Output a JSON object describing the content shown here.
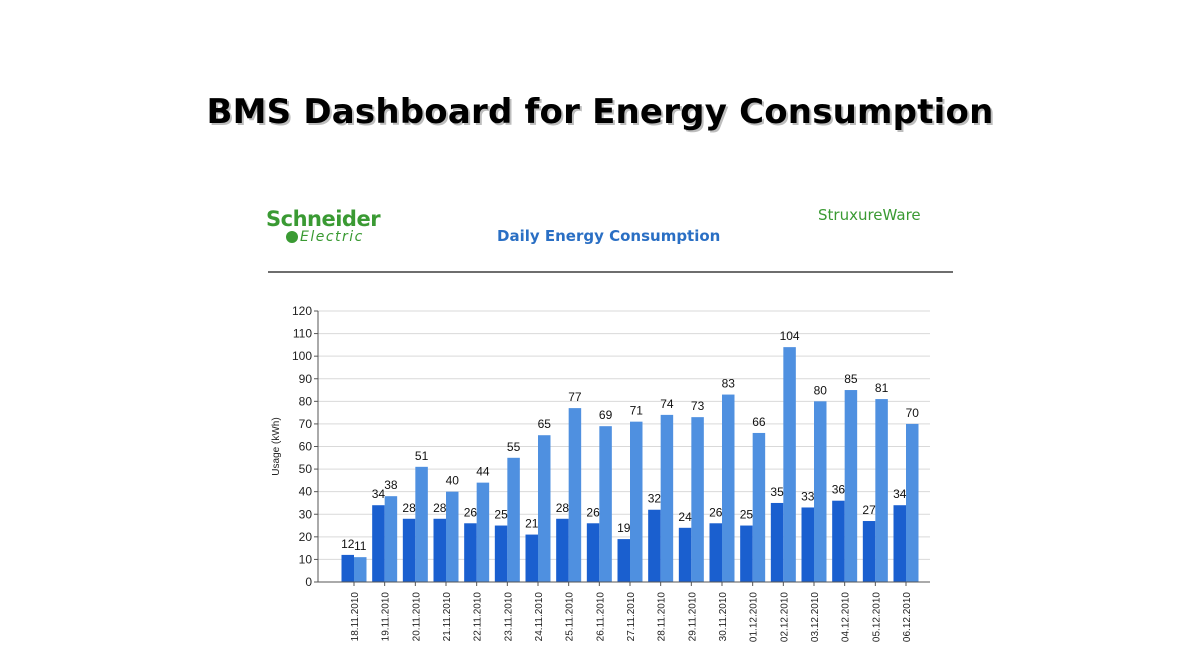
{
  "page": {
    "title": "BMS Dashboard for Energy Consumption"
  },
  "header": {
    "logo_line1": "Schneider",
    "logo_line2": "Electric",
    "brand_right": "StruxureWare"
  },
  "colors": {
    "series_dark": "#1a5fcf",
    "series_light": "#4f90e0",
    "brand_green": "#3a9a33",
    "title_blue": "#2a6fc4"
  },
  "chart_data": {
    "type": "bar",
    "title": "Daily Energy Consumption",
    "xlabel": "",
    "ylabel": "Usage (kWh)",
    "ylim": [
      0,
      120
    ],
    "yticks": [
      0,
      10,
      20,
      30,
      40,
      50,
      60,
      70,
      80,
      90,
      100,
      110,
      120
    ],
    "grid": true,
    "categories": [
      "18.11.2010",
      "19.11.2010",
      "20.11.2010",
      "21.11.2010",
      "22.11.2010",
      "23.11.2010",
      "24.11.2010",
      "25.11.2010",
      "26.11.2010",
      "27.11.2010",
      "28.11.2010",
      "29.11.2010",
      "30.11.2010",
      "01.12.2010",
      "02.12.2010",
      "03.12.2010",
      "04.12.2010",
      "05.12.2010",
      "06.12.2010"
    ],
    "series": [
      {
        "values": [
          12,
          34,
          28,
          28,
          26,
          25,
          21,
          28,
          26,
          19,
          32,
          24,
          26,
          25,
          35,
          33,
          36,
          27,
          34
        ]
      },
      {
        "values": [
          11,
          38,
          51,
          40,
          44,
          55,
          65,
          77,
          69,
          71,
          74,
          73,
          83,
          66,
          104,
          80,
          85,
          81,
          70
        ]
      }
    ]
  }
}
